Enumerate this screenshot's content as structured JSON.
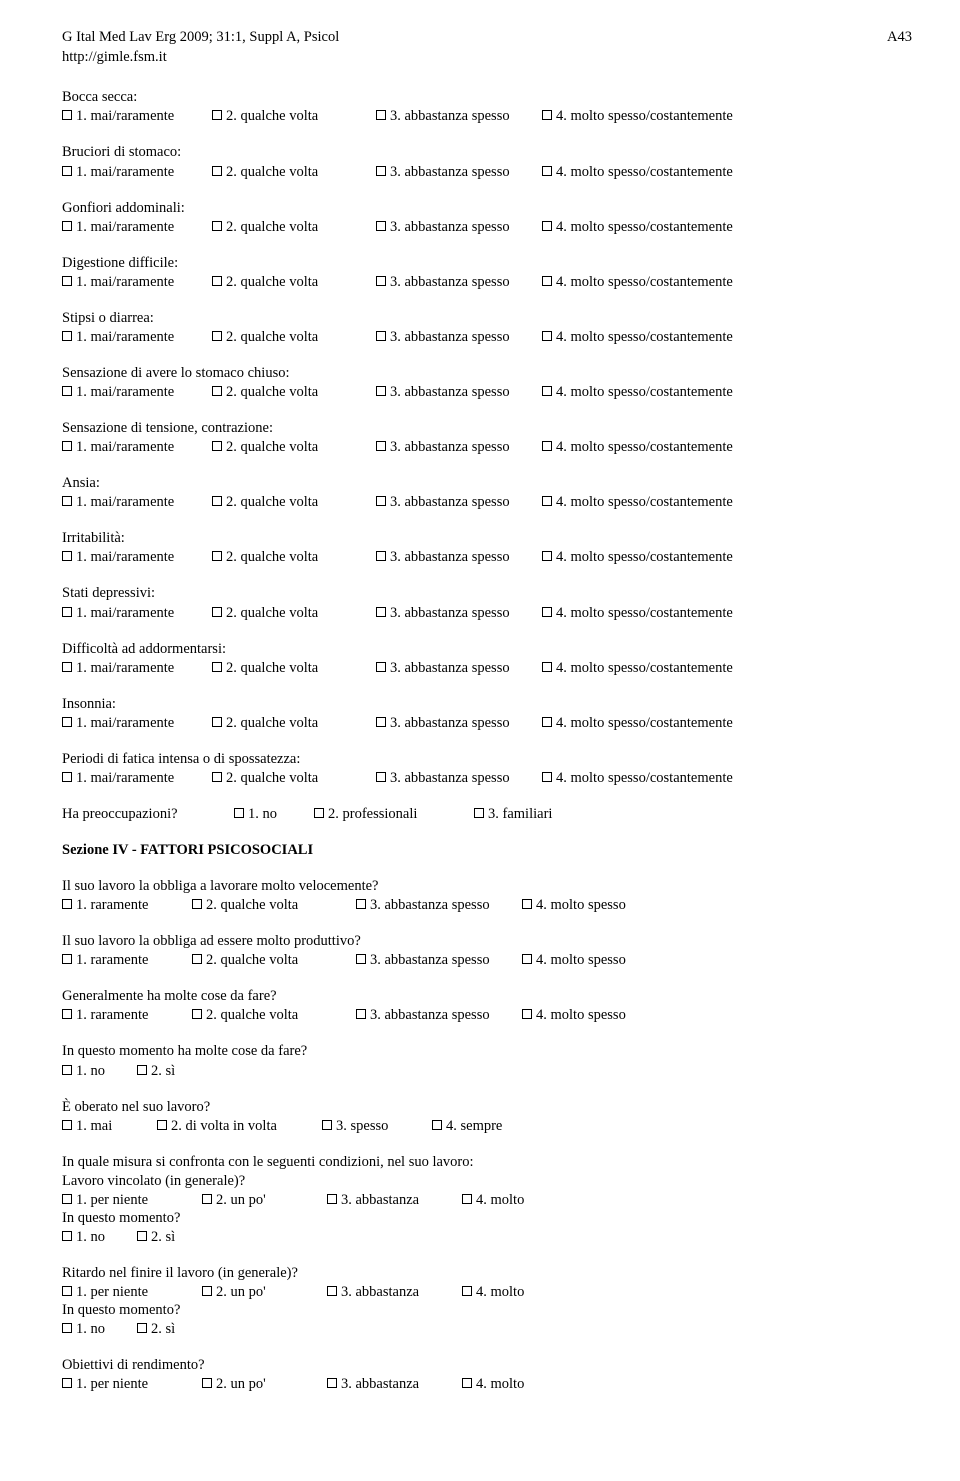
{
  "header": {
    "journal": "G Ital Med Lav Erg 2009; 31:1, Suppl A, Psicol",
    "url": "http://gimle.fsm.it",
    "page": "A43"
  },
  "scaleA": {
    "o1": "1. mai/raramente",
    "o2": "2. qualche volta",
    "o3": "3. abbastanza spesso",
    "o4": "4. molto spesso/costantemente"
  },
  "scaleB": {
    "o1": "1. raramente",
    "o2": "2. qualche volta",
    "o3": "3. abbastanza spesso",
    "o4": "4. molto spesso"
  },
  "scaleC": {
    "o1": "1. per niente",
    "o2": "2. un po'",
    "o3": "3. abbastanza",
    "o4": "4. molto"
  },
  "scaleYN": {
    "o1": "1. no",
    "o2": "2. sì"
  },
  "scaleFreq": {
    "o1": "1. mai",
    "o2": "2. di volta in volta",
    "o3": "3. spesso",
    "o4": "4. sempre"
  },
  "scaleWorry": {
    "o1": "1. no",
    "o2": "2. professionali",
    "o3": "3. familiari"
  },
  "sectionA": {
    "q1": "Bocca secca:",
    "q2": "Bruciori di stomaco:",
    "q3": "Gonfiori addominali:",
    "q4": "Digestione difficile:",
    "q5": "Stipsi o diarrea:",
    "q6": "Sensazione di avere lo stomaco chiuso:",
    "q7": "Sensazione di tensione, contrazione:",
    "q8": "Ansia:",
    "q9": "Irritabilità:",
    "q10": "Stati depressivi:",
    "q11": "Difficoltà ad addormentarsi:",
    "q12": "Insonnia:",
    "q13": "Periodi di fatica intensa o di spossatezza:",
    "q14": "Ha preoccupazioni?"
  },
  "section4": {
    "title": "Sezione IV - FATTORI PSICOSOCIALI",
    "q1": "Il suo lavoro la obbliga a lavorare molto velocemente?",
    "q2": "Il suo lavoro la obbliga ad essere molto produttivo?",
    "q3": "Generalmente ha molte cose da fare?",
    "q4": "In questo momento ha molte cose da fare?",
    "q5": "È oberato nel suo lavoro?",
    "q6intro": "In quale misura si confronta con le seguenti condizioni, nel suo lavoro:",
    "q6a": "Lavoro vincolato (in generale)?",
    "q6b": "In questo momento?",
    "q7a": "Ritardo nel finire il lavoro (in generale)?",
    "q7b": "In questo momento?",
    "q8": "Obiettivi di rendimento?"
  },
  "layout": {
    "gapA": [
      0,
      150,
      314,
      480
    ],
    "gapB": [
      0,
      130,
      294,
      460
    ],
    "gapC": [
      0,
      140,
      265,
      400
    ],
    "gapYN": [
      0,
      75
    ],
    "gapFreq": [
      0,
      95,
      260,
      370
    ],
    "gapWorry": [
      0,
      172,
      252,
      412
    ]
  }
}
